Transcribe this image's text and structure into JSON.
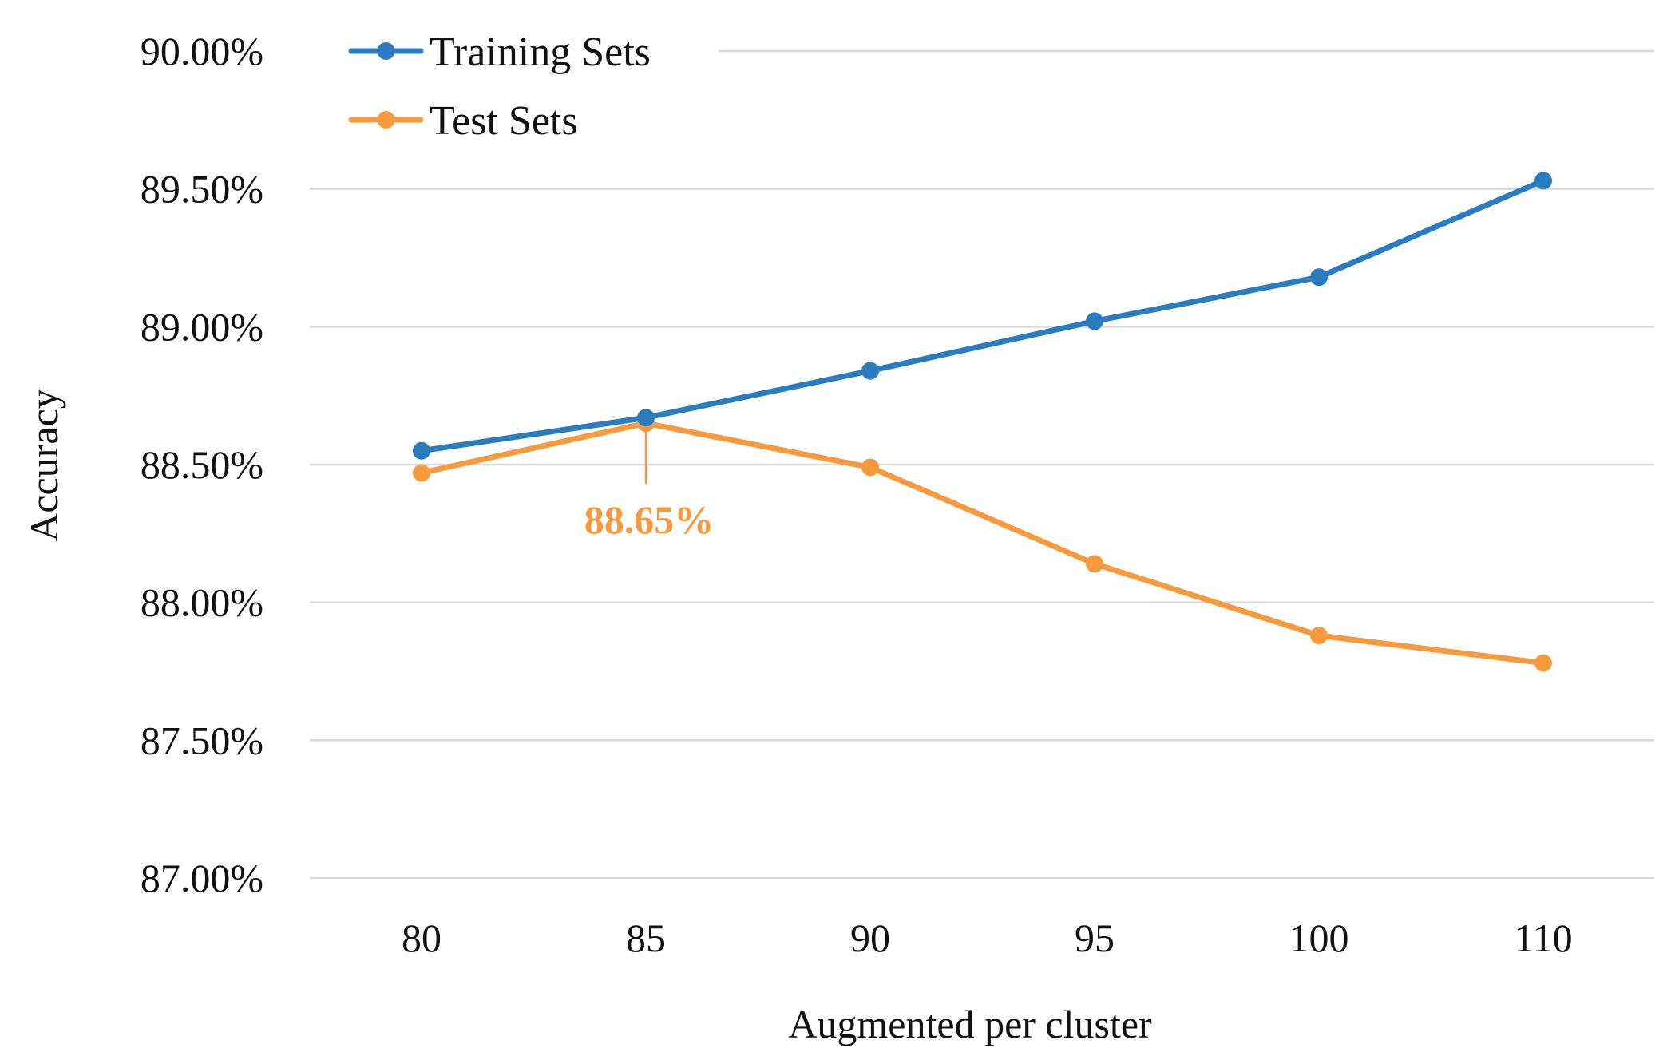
{
  "chart_data": {
    "type": "line",
    "title": "",
    "xlabel": "Augmented per cluster",
    "ylabel": "Accuracy",
    "categories": [
      "80",
      "85",
      "90",
      "95",
      "100",
      "110"
    ],
    "ylim": [
      87.0,
      90.0
    ],
    "yticks": [
      87.0,
      87.5,
      88.0,
      88.5,
      89.0,
      89.5,
      90.0
    ],
    "ytick_labels": [
      "87.00%",
      "87.50%",
      "88.00%",
      "88.50%",
      "89.00%",
      "89.50%",
      "90.00%"
    ],
    "grid": true,
    "legend_position": "top-left",
    "series": [
      {
        "name": "Training Sets",
        "color": "#2b7bbf",
        "values": [
          88.55,
          88.67,
          88.84,
          89.02,
          89.18,
          89.53
        ]
      },
      {
        "name": "Test Sets",
        "color": "#f79a3e",
        "values": [
          88.47,
          88.65,
          88.49,
          88.14,
          87.88,
          87.78
        ]
      }
    ],
    "annotations": [
      {
        "series_index": 1,
        "category_index": 1,
        "text": "88.65%",
        "color": "#f79a3e"
      }
    ]
  }
}
